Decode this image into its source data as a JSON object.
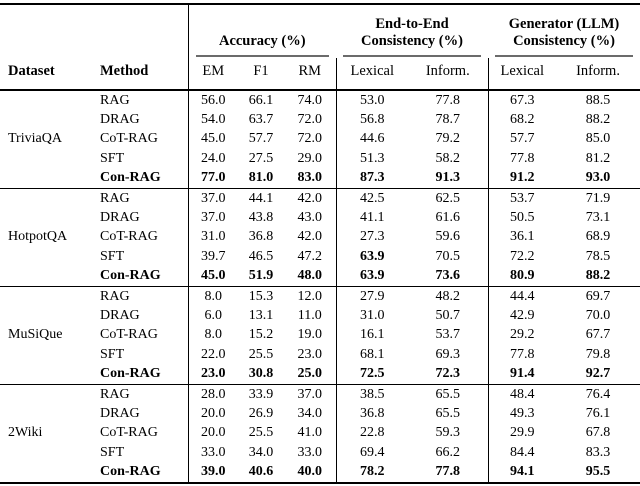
{
  "colors": {
    "background": "#ffffff",
    "text": "#000000",
    "rule": "#000000",
    "cmidrule": "#6b6b6b"
  },
  "header": {
    "dataset_label": "Dataset",
    "method_label": "Method",
    "groups": [
      {
        "title": "Accuracy (%)",
        "subcols": [
          "EM",
          "F1",
          "RM"
        ]
      },
      {
        "title": "End-to-End Consistency (%)",
        "subcols": [
          "Lexical",
          "Inform."
        ]
      },
      {
        "title": "Generator (LLM) Consistency (%)",
        "subcols": [
          "Lexical",
          "Inform."
        ]
      }
    ]
  },
  "blocks": [
    {
      "dataset": "TriviaQA",
      "rows": [
        {
          "method": "RAG",
          "bold": false,
          "bold_cells": [],
          "values": [
            "56.0",
            "66.1",
            "74.0",
            "53.0",
            "77.8",
            "67.3",
            "88.5"
          ]
        },
        {
          "method": "DRAG",
          "bold": false,
          "bold_cells": [],
          "values": [
            "54.0",
            "63.7",
            "72.0",
            "56.8",
            "78.7",
            "68.2",
            "88.2"
          ]
        },
        {
          "method": "CoT-RAG",
          "bold": false,
          "bold_cells": [],
          "values": [
            "45.0",
            "57.7",
            "72.0",
            "44.6",
            "79.2",
            "57.7",
            "85.0"
          ]
        },
        {
          "method": "SFT",
          "bold": false,
          "bold_cells": [],
          "values": [
            "24.0",
            "27.5",
            "29.0",
            "51.3",
            "58.2",
            "77.8",
            "81.2"
          ]
        },
        {
          "method": "Con-RAG",
          "bold": true,
          "bold_cells": [],
          "values": [
            "77.0",
            "81.0",
            "83.0",
            "87.3",
            "91.3",
            "91.2",
            "93.0"
          ]
        }
      ]
    },
    {
      "dataset": "HotpotQA",
      "rows": [
        {
          "method": "RAG",
          "bold": false,
          "bold_cells": [],
          "values": [
            "37.0",
            "44.1",
            "42.0",
            "42.5",
            "62.5",
            "53.7",
            "71.9"
          ]
        },
        {
          "method": "DRAG",
          "bold": false,
          "bold_cells": [],
          "values": [
            "37.0",
            "43.8",
            "43.0",
            "41.1",
            "61.6",
            "50.5",
            "73.1"
          ]
        },
        {
          "method": "CoT-RAG",
          "bold": false,
          "bold_cells": [],
          "values": [
            "31.0",
            "36.8",
            "42.0",
            "27.3",
            "59.6",
            "36.1",
            "68.9"
          ]
        },
        {
          "method": "SFT",
          "bold": false,
          "bold_cells": [
            3
          ],
          "values": [
            "39.7",
            "46.5",
            "47.2",
            "63.9",
            "70.5",
            "72.2",
            "78.5"
          ]
        },
        {
          "method": "Con-RAG",
          "bold": true,
          "bold_cells": [],
          "values": [
            "45.0",
            "51.9",
            "48.0",
            "63.9",
            "73.6",
            "80.9",
            "88.2"
          ]
        }
      ]
    },
    {
      "dataset": "MuSiQue",
      "rows": [
        {
          "method": "RAG",
          "bold": false,
          "bold_cells": [],
          "values": [
            "8.0",
            "15.3",
            "12.0",
            "27.9",
            "48.2",
            "44.4",
            "69.7"
          ]
        },
        {
          "method": "DRAG",
          "bold": false,
          "bold_cells": [],
          "values": [
            "6.0",
            "13.1",
            "11.0",
            "31.0",
            "50.7",
            "42.9",
            "70.0"
          ]
        },
        {
          "method": "CoT-RAG",
          "bold": false,
          "bold_cells": [],
          "values": [
            "8.0",
            "15.2",
            "19.0",
            "16.1",
            "53.7",
            "29.2",
            "67.7"
          ]
        },
        {
          "method": "SFT",
          "bold": false,
          "bold_cells": [],
          "values": [
            "22.0",
            "25.5",
            "23.0",
            "68.1",
            "69.3",
            "77.8",
            "79.8"
          ]
        },
        {
          "method": "Con-RAG",
          "bold": true,
          "bold_cells": [],
          "values": [
            "23.0",
            "30.8",
            "25.0",
            "72.5",
            "72.3",
            "91.4",
            "92.7"
          ]
        }
      ]
    },
    {
      "dataset": "2Wiki",
      "rows": [
        {
          "method": "RAG",
          "bold": false,
          "bold_cells": [],
          "values": [
            "28.0",
            "33.9",
            "37.0",
            "38.5",
            "65.5",
            "48.4",
            "76.4"
          ]
        },
        {
          "method": "DRAG",
          "bold": false,
          "bold_cells": [],
          "values": [
            "20.0",
            "26.9",
            "34.0",
            "36.8",
            "65.5",
            "49.3",
            "76.1"
          ]
        },
        {
          "method": "CoT-RAG",
          "bold": false,
          "bold_cells": [],
          "values": [
            "20.0",
            "25.5",
            "41.0",
            "22.8",
            "59.3",
            "29.9",
            "67.8"
          ]
        },
        {
          "method": "SFT",
          "bold": false,
          "bold_cells": [],
          "values": [
            "33.0",
            "34.0",
            "33.0",
            "69.4",
            "66.2",
            "84.4",
            "83.3"
          ]
        },
        {
          "method": "Con-RAG",
          "bold": true,
          "bold_cells": [],
          "values": [
            "39.0",
            "40.6",
            "40.0",
            "78.2",
            "77.8",
            "94.1",
            "95.5"
          ]
        }
      ]
    }
  ]
}
